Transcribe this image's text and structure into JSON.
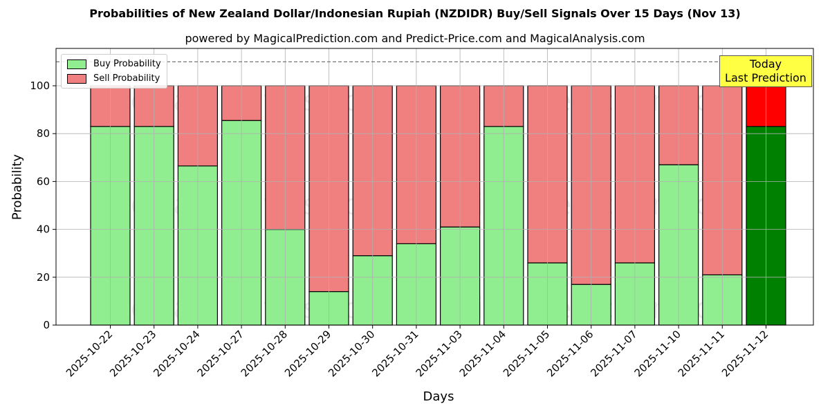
{
  "title": "Probabilities of New Zealand Dollar/Indonesian Rupiah (NZDIDR) Buy/Sell Signals Over 15 Days (Nov 13)",
  "subtitle": "powered by MagicalPrediction.com and Predict-Price.com and MagicalAnalysis.com",
  "legend": {
    "buy": "Buy Probability",
    "sell": "Sell Probability"
  },
  "annotation": {
    "line1": "Today",
    "line2": "Last Prediction"
  },
  "colors": {
    "buy": "#90ee90",
    "sell": "#f08080",
    "today_buy": "#008000",
    "today_sell": "#ff0000",
    "annotation_bg": "#ffff44"
  },
  "watermarks": [
    "MagicalAnalysis.com",
    "MagicalPrediction.com"
  ],
  "chart_data": {
    "type": "bar",
    "stacked": true,
    "title": "Probabilities of New Zealand Dollar/Indonesian Rupiah (NZDIDR) Buy/Sell Signals Over 15 Days (Nov 13)",
    "subtitle": "powered by MagicalPrediction.com and Predict-Price.com and MagicalAnalysis.com",
    "xlabel": "Days",
    "ylabel": "Probability",
    "ylim": [
      0,
      115
    ],
    "yticks": [
      0,
      20,
      40,
      60,
      80,
      100
    ],
    "reference_line": 110,
    "grid": true,
    "legend_position": "upper left",
    "categories": [
      "2025-10-22",
      "2025-10-23",
      "2025-10-24",
      "2025-10-27",
      "2025-10-28",
      "2025-10-29",
      "2025-10-30",
      "2025-10-31",
      "2025-11-03",
      "2025-11-04",
      "2025-11-05",
      "2025-11-06",
      "2025-11-07",
      "2025-11-10",
      "2025-11-11",
      "2025-11-12"
    ],
    "series": [
      {
        "name": "Buy Probability",
        "values": [
          83,
          83,
          66.5,
          85.5,
          40,
          14,
          29,
          34,
          41,
          83,
          26,
          17,
          26,
          67,
          21,
          83
        ]
      },
      {
        "name": "Sell Probability",
        "values": [
          17,
          17,
          33.5,
          14.5,
          60,
          86,
          71,
          66,
          59,
          17,
          74,
          83,
          74,
          33,
          79,
          17
        ]
      }
    ]
  }
}
